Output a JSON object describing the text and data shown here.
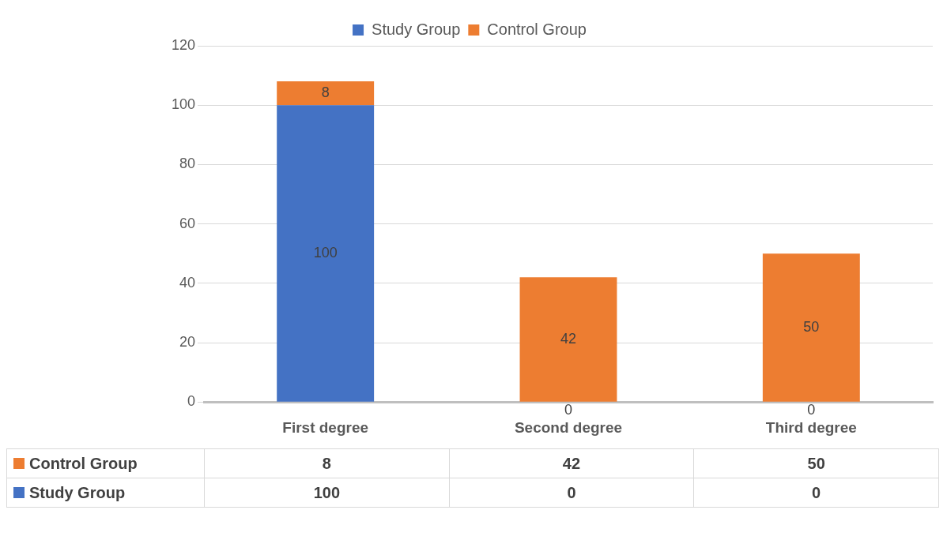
{
  "chart_data": {
    "type": "bar",
    "stacked": true,
    "categories": [
      "First degree",
      "Second degree",
      "Third degree"
    ],
    "series": [
      {
        "name": "Study Group",
        "color": "#4472c4",
        "values": [
          100,
          0,
          0
        ],
        "value_labels": [
          "100",
          "0",
          "0"
        ]
      },
      {
        "name": "Control Group",
        "color": "#ed7d31",
        "values": [
          8,
          42,
          50
        ],
        "value_labels": [
          "8",
          "42",
          "50"
        ]
      }
    ],
    "ylim": [
      0,
      120
    ],
    "yticks": [
      0,
      20,
      40,
      60,
      80,
      100,
      120
    ],
    "grid": "y",
    "legend": "top"
  }
}
